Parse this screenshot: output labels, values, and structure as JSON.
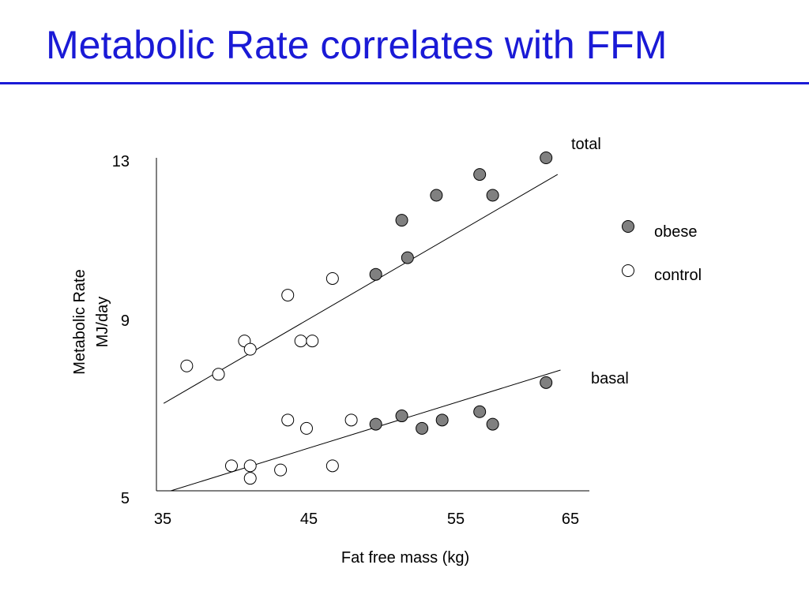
{
  "slide": {
    "title": "Metabolic Rate correlates with FFM",
    "accent_color": "#1a1ad6"
  },
  "chart_data": {
    "type": "scatter",
    "xlabel": "Fat free mass (kg)",
    "ylabel": [
      "Metabolic Rate",
      "MJ/day"
    ],
    "xlim": [
      35,
      65
    ],
    "ylim": [
      5,
      13
    ],
    "xticks": [
      35,
      45,
      55,
      65
    ],
    "yticks": [
      5,
      9,
      13
    ],
    "grid": false,
    "legend": {
      "position": "right",
      "entries": [
        {
          "label": "obese",
          "marker": "filled",
          "color": "#808080"
        },
        {
          "label": "control",
          "marker": "open",
          "color": "#ffffff"
        }
      ]
    },
    "series": [
      {
        "name": "total",
        "trendline": {
          "x": [
            35.5,
            62.8
          ],
          "y": [
            7.1,
            12.6
          ]
        },
        "groups": {
          "obese": [
            [
              50.2,
              10.2
            ],
            [
              52.0,
              11.5
            ],
            [
              52.4,
              10.6
            ],
            [
              54.4,
              12.1
            ],
            [
              57.4,
              12.6
            ],
            [
              58.3,
              12.1
            ],
            [
              62.0,
              13.0
            ]
          ],
          "control": [
            [
              37.1,
              8.0
            ],
            [
              39.3,
              7.8
            ],
            [
              41.1,
              8.6
            ],
            [
              41.5,
              8.4
            ],
            [
              44.1,
              9.7
            ],
            [
              45.0,
              8.6
            ],
            [
              45.8,
              8.6
            ],
            [
              47.2,
              10.1
            ]
          ]
        }
      },
      {
        "name": "basal",
        "trendline": {
          "x": [
            36.0,
            63.0
          ],
          "y": [
            5.0,
            7.9
          ]
        },
        "groups": {
          "obese": [
            [
              50.2,
              6.6
            ],
            [
              52.0,
              6.8
            ],
            [
              53.4,
              6.5
            ],
            [
              54.8,
              6.7
            ],
            [
              57.4,
              6.9
            ],
            [
              58.3,
              6.6
            ],
            [
              62.0,
              7.6
            ]
          ],
          "control": [
            [
              40.2,
              5.6
            ],
            [
              41.5,
              5.6
            ],
            [
              41.5,
              5.3
            ],
            [
              43.6,
              5.5
            ],
            [
              44.1,
              6.7
            ],
            [
              45.4,
              6.5
            ],
            [
              47.2,
              5.6
            ],
            [
              48.5,
              6.7
            ]
          ]
        }
      }
    ]
  }
}
